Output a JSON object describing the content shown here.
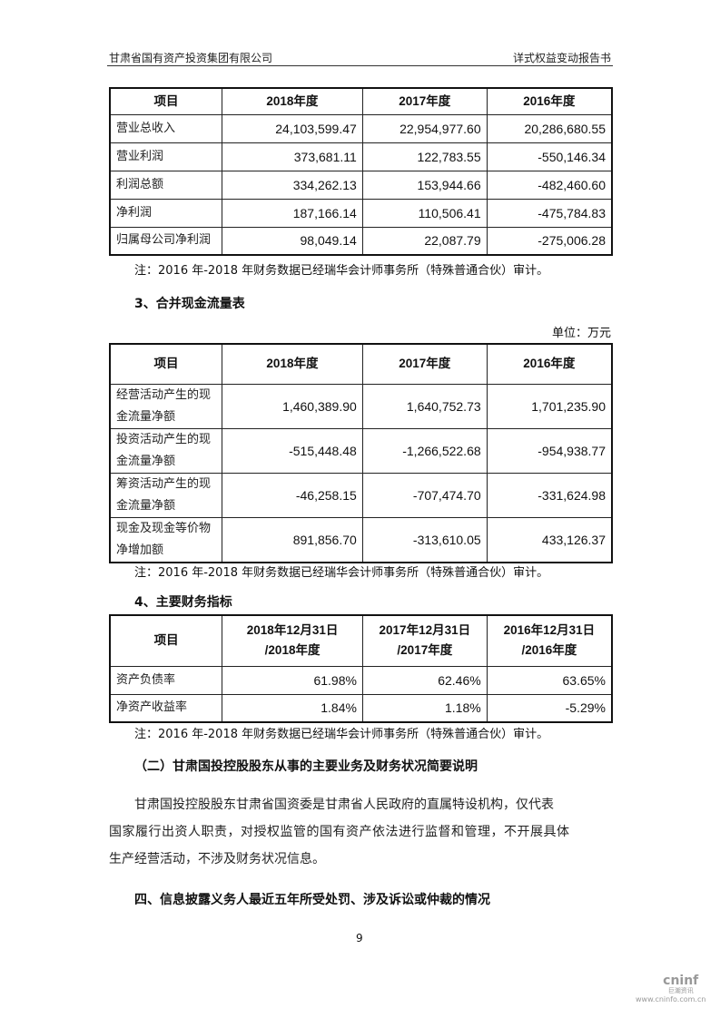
{
  "header": {
    "left": "甘肃省国有资产投资集团有限公司",
    "right": "详式权益变动报告书"
  },
  "table1": {
    "headers": [
      "项目",
      "2018年度",
      "2017年度",
      "2016年度"
    ],
    "rows": [
      [
        "营业总收入",
        "24,103,599.47",
        "22,954,977.60",
        "20,286,680.55"
      ],
      [
        "营业利润",
        "373,681.11",
        "122,783.55",
        "-550,146.34"
      ],
      [
        "利润总额",
        "334,262.13",
        "153,944.66",
        "-482,460.60"
      ],
      [
        "净利润",
        "187,166.14",
        "110,506.41",
        "-475,784.83"
      ],
      [
        "归属母公司净利润",
        "98,049.14",
        "22,087.79",
        "-275,006.28"
      ]
    ]
  },
  "note": "注：2016 年-2018 年财务数据已经瑞华会计师事务所（特殊普通合伙）审计。",
  "section3": {
    "title": "3、合并现金流量表",
    "unit": "单位：万元"
  },
  "table2": {
    "headers": [
      "项目",
      "2018年度",
      "2017年度",
      "2016年度"
    ],
    "rows": [
      [
        "经营活动产生的现金流量净额",
        "1,460,389.90",
        "1,640,752.73",
        "1,701,235.90"
      ],
      [
        "投资活动产生的现金流量净额",
        "-515,448.48",
        "-1,266,522.68",
        "-954,938.77"
      ],
      [
        "筹资活动产生的现金流量净额",
        "-46,258.15",
        "-707,474.70",
        "-331,624.98"
      ],
      [
        "现金及现金等价物净增加额",
        "891,856.70",
        "-313,610.05",
        "433,126.37"
      ]
    ]
  },
  "section4": {
    "title": "4、主要财务指标"
  },
  "table3": {
    "headers": [
      "项目",
      "2018年12月31日\n/2018年度",
      "2017年12月31日\n/2017年度",
      "2016年12月31日\n/2016年度"
    ],
    "rows": [
      [
        "资产负债率",
        "61.98%",
        "62.46%",
        "63.65%"
      ],
      [
        "净资产收益率",
        "1.84%",
        "1.18%",
        "-5.29%"
      ]
    ]
  },
  "section_b": {
    "title": "（二）甘肃国投控股股东从事的主要业务及财务状况简要说明",
    "lines": [
      "甘肃国投控股股东甘肃省国资委是甘肃省人民政府的直属特设机构，仅代表",
      "国家履行出资人职责，对授权监管的国有资产依法进行监督和管理，不开展具体",
      "生产经营活动，不涉及财务状况信息。"
    ]
  },
  "section_four": {
    "title": "四、信息披露义务人最近五年所受处罚、涉及诉讼或仲裁的情况"
  },
  "page_number": "9",
  "watermark": {
    "brand": "cninf",
    "sub": "巨潮资讯",
    "url": "www.cninfo.com.cn"
  }
}
